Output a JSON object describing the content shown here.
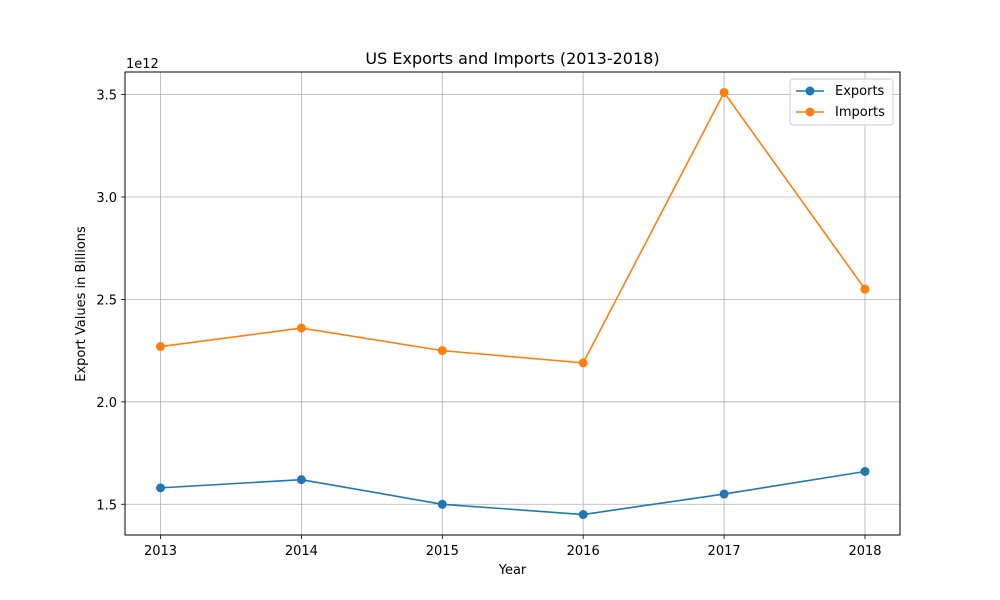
{
  "chart_data": {
    "type": "line",
    "title": "US Exports and Imports (2013-2018)",
    "xlabel": "Year",
    "ylabel": "Export Values in Billions",
    "y_offset_label": "1e12",
    "categories": [
      "2013",
      "2014",
      "2015",
      "2016",
      "2017",
      "2018"
    ],
    "series": [
      {
        "name": "Exports",
        "color": "#1f77b4",
        "values": [
          1.58,
          1.62,
          1.5,
          1.45,
          1.55,
          1.66
        ]
      },
      {
        "name": "Imports",
        "color": "#ff7f0e",
        "values": [
          2.27,
          2.36,
          2.25,
          2.19,
          3.51,
          2.55
        ]
      }
    ],
    "yticks": [
      "1.5",
      "2.0",
      "2.5",
      "3.0",
      "3.5"
    ],
    "ylim": [
      1.35,
      3.61
    ],
    "grid": true,
    "legend_position": "top-right",
    "marker": "circle"
  }
}
